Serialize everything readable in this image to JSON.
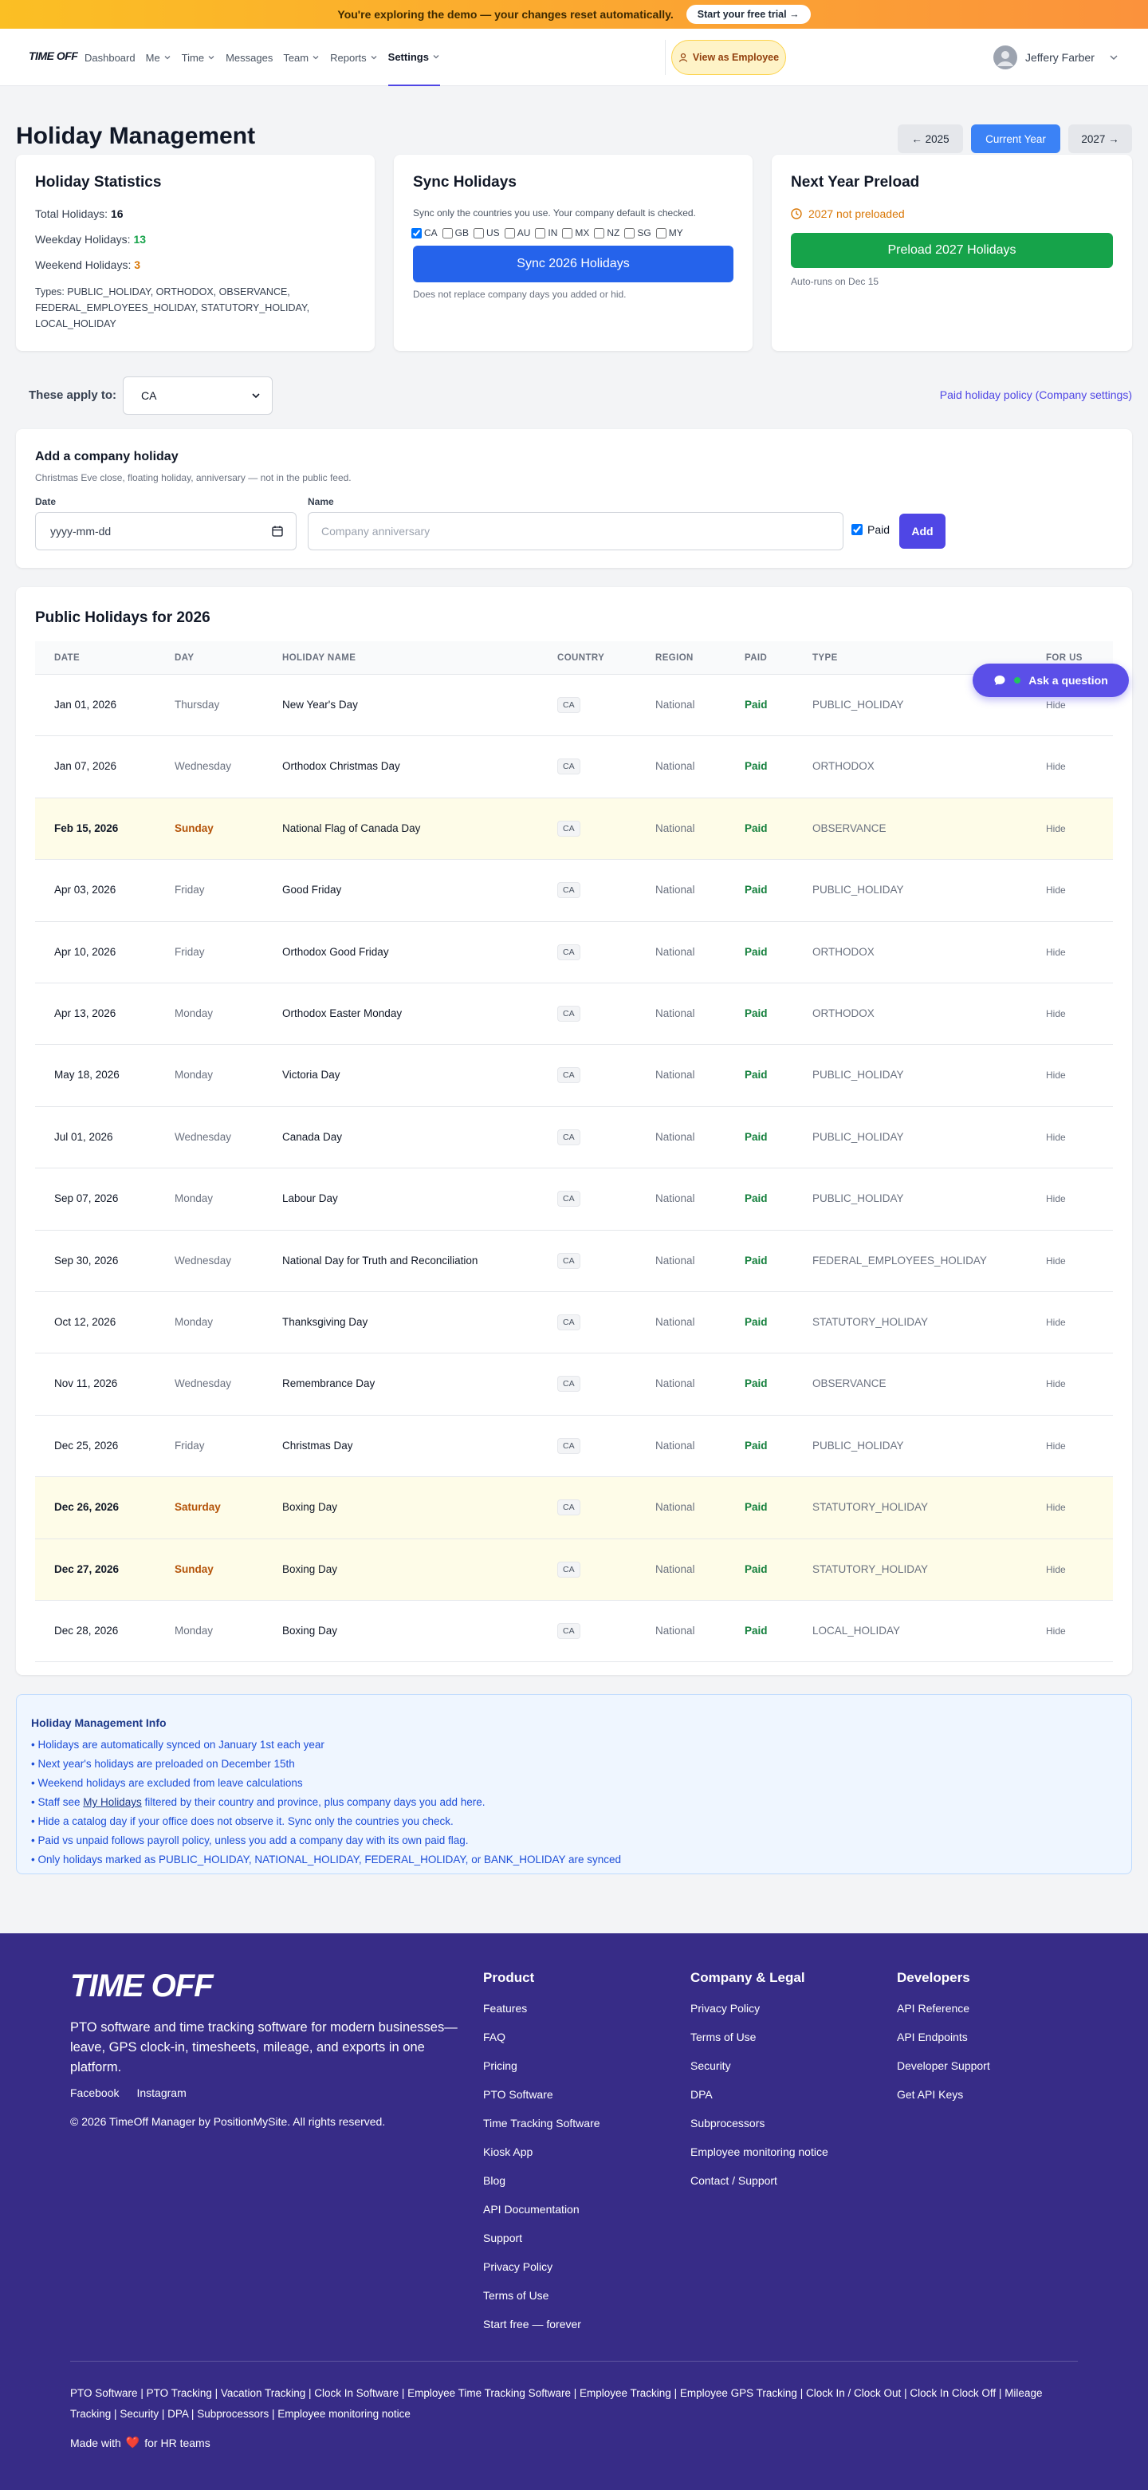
{
  "banner": {
    "text": "You're exploring the demo — your changes reset automatically.",
    "button": "Start your free trial →"
  },
  "nav": {
    "logo": "TIME OFF",
    "items": [
      "Dashboard",
      "Me",
      "Time",
      "Messages",
      "Team",
      "Reports",
      "Settings"
    ],
    "dropdown": [
      false,
      true,
      true,
      false,
      true,
      true,
      true
    ],
    "active": 6,
    "view_as": "View as Employee",
    "user": "Jeffery Farber"
  },
  "header": {
    "title": "Holiday Management",
    "year_buttons": [
      "← 2025",
      "Current Year",
      "2027 →"
    ],
    "active": 1
  },
  "stats": {
    "title": "Holiday Statistics",
    "items": [
      {
        "label": "Total Holidays:",
        "value": 16,
        "color": "#111827"
      },
      {
        "label": "Weekday Holidays:",
        "value": 13,
        "color": "#16a34a"
      },
      {
        "label": "Weekend Holidays:",
        "value": 3,
        "color": "#d97706"
      }
    ],
    "types": "Types: PUBLIC_HOLIDAY, ORTHODOX, OBSERVANCE, FEDERAL_EMPLOYEES_HOLIDAY, STATUTORY_HOLIDAY, LOCAL_HOLIDAY"
  },
  "sync": {
    "title": "Sync Holidays",
    "desc": "Sync only the countries you use. Your company default is checked.",
    "countries": [
      "CA",
      "GB",
      "US",
      "AU",
      "IN",
      "MX",
      "NZ",
      "SG",
      "MY"
    ],
    "checked": [
      true,
      false,
      false,
      false,
      false,
      false,
      false,
      false,
      false
    ],
    "button": "Sync 2026 Holidays",
    "note": "Does not replace company days you added or hid."
  },
  "preload": {
    "title": "Next Year Preload",
    "status": "2027 not preloaded",
    "button": "Preload 2027 Holidays",
    "note": "Auto-runs on Dec 15"
  },
  "filter": {
    "label": "These apply to:",
    "selected": "CA",
    "link": "Paid holiday policy (Company settings)"
  },
  "add_holiday": {
    "title": "Add a company holiday",
    "desc": "Christmas Eve close, floating holiday, anniversary — not in the public feed.",
    "date_label": "Date",
    "date_placeholder": "yyyy-mm-dd",
    "name_label": "Name",
    "name_placeholder": "Company anniversary",
    "paid_label": "Paid",
    "button": "Add"
  },
  "table": {
    "title": "Public Holidays for 2026",
    "columns": [
      "DATE",
      "DAY",
      "HOLIDAY NAME",
      "COUNTRY",
      "REGION",
      "PAID",
      "TYPE",
      "FOR US"
    ],
    "rows": [
      {
        "date": "Jan 01, 2026",
        "day": "Thursday",
        "name": "New Year's Day",
        "country": "CA",
        "region": "National",
        "paid": "Paid",
        "type": "PUBLIC_HOLIDAY",
        "action": "Hide",
        "weekend": false
      },
      {
        "date": "Jan 07, 2026",
        "day": "Wednesday",
        "name": "Orthodox Christmas Day",
        "country": "CA",
        "region": "National",
        "paid": "Paid",
        "type": "ORTHODOX",
        "action": "Hide",
        "weekend": false
      },
      {
        "date": "Feb 15, 2026",
        "day": "Sunday",
        "name": "National Flag of Canada Day",
        "country": "CA",
        "region": "National",
        "paid": "Paid",
        "type": "OBSERVANCE",
        "action": "Hide",
        "weekend": true
      },
      {
        "date": "Apr 03, 2026",
        "day": "Friday",
        "name": "Good Friday",
        "country": "CA",
        "region": "National",
        "paid": "Paid",
        "type": "PUBLIC_HOLIDAY",
        "action": "Hide",
        "weekend": false
      },
      {
        "date": "Apr 10, 2026",
        "day": "Friday",
        "name": "Orthodox Good Friday",
        "country": "CA",
        "region": "National",
        "paid": "Paid",
        "type": "ORTHODOX",
        "action": "Hide",
        "weekend": false
      },
      {
        "date": "Apr 13, 2026",
        "day": "Monday",
        "name": "Orthodox Easter Monday",
        "country": "CA",
        "region": "National",
        "paid": "Paid",
        "type": "ORTHODOX",
        "action": "Hide",
        "weekend": false
      },
      {
        "date": "May 18, 2026",
        "day": "Monday",
        "name": "Victoria Day",
        "country": "CA",
        "region": "National",
        "paid": "Paid",
        "type": "PUBLIC_HOLIDAY",
        "action": "Hide",
        "weekend": false
      },
      {
        "date": "Jul 01, 2026",
        "day": "Wednesday",
        "name": "Canada Day",
        "country": "CA",
        "region": "National",
        "paid": "Paid",
        "type": "PUBLIC_HOLIDAY",
        "action": "Hide",
        "weekend": false
      },
      {
        "date": "Sep 07, 2026",
        "day": "Monday",
        "name": "Labour Day",
        "country": "CA",
        "region": "National",
        "paid": "Paid",
        "type": "PUBLIC_HOLIDAY",
        "action": "Hide",
        "weekend": false
      },
      {
        "date": "Sep 30, 2026",
        "day": "Wednesday",
        "name": "National Day for Truth and Reconciliation",
        "country": "CA",
        "region": "National",
        "paid": "Paid",
        "type": "FEDERAL_EMPLOYEES_HOLIDAY",
        "action": "Hide",
        "weekend": false
      },
      {
        "date": "Oct 12, 2026",
        "day": "Monday",
        "name": "Thanksgiving Day",
        "country": "CA",
        "region": "National",
        "paid": "Paid",
        "type": "STATUTORY_HOLIDAY",
        "action": "Hide",
        "weekend": false
      },
      {
        "date": "Nov 11, 2026",
        "day": "Wednesday",
        "name": "Remembrance Day",
        "country": "CA",
        "region": "National",
        "paid": "Paid",
        "type": "OBSERVANCE",
        "action": "Hide",
        "weekend": false
      },
      {
        "date": "Dec 25, 2026",
        "day": "Friday",
        "name": "Christmas Day",
        "country": "CA",
        "region": "National",
        "paid": "Paid",
        "type": "PUBLIC_HOLIDAY",
        "action": "Hide",
        "weekend": false
      },
      {
        "date": "Dec 26, 2026",
        "day": "Saturday",
        "name": "Boxing Day",
        "country": "CA",
        "region": "National",
        "paid": "Paid",
        "type": "STATUTORY_HOLIDAY",
        "action": "Hide",
        "weekend": true
      },
      {
        "date": "Dec 27, 2026",
        "day": "Sunday",
        "name": "Boxing Day",
        "country": "CA",
        "region": "National",
        "paid": "Paid",
        "type": "STATUTORY_HOLIDAY",
        "action": "Hide",
        "weekend": true
      },
      {
        "date": "Dec 28, 2026",
        "day": "Monday",
        "name": "Boxing Day",
        "country": "CA",
        "region": "National",
        "paid": "Paid",
        "type": "LOCAL_HOLIDAY",
        "action": "Hide",
        "weekend": false
      }
    ]
  },
  "ask_button": "Ask a question",
  "info": {
    "title": "Holiday Management Info",
    "items": [
      "• Holidays are automatically synced on January 1st each year",
      "• Next year's holidays are preloaded on December 15th",
      "• Weekend holidays are excluded from leave calculations",
      {
        "before": "• Staff see ",
        "link": "My Holidays",
        "after": " filtered by their country and province, plus company days you add here."
      },
      "• Hide a catalog day if your office does not observe it. Sync only the countries you check.",
      "• Paid vs unpaid follows payroll policy, unless you add a company day with its own paid flag.",
      "• Only holidays marked as PUBLIC_HOLIDAY, NATIONAL_HOLIDAY, FEDERAL_HOLIDAY, or BANK_HOLIDAY are synced"
    ]
  },
  "footer": {
    "logo": "TIME OFF",
    "tagline": "PTO software and time tracking software for modern businesses—leave, GPS clock-in, timesheets, mileage, and exports in one platform.",
    "social": [
      "Facebook",
      "Instagram"
    ],
    "copyright": "© 2026 TimeOff Manager by PositionMySite. All rights reserved.",
    "columns": [
      {
        "title": "Product",
        "links": [
          "Features",
          "FAQ",
          "Pricing",
          "PTO Software",
          "Time Tracking Software",
          "Kiosk App",
          "Blog",
          "API Documentation",
          "Support",
          "Privacy Policy",
          "Terms of Use",
          "Start free — forever"
        ]
      },
      {
        "title": "Company & Legal",
        "links": [
          "Privacy Policy",
          "Terms of Use",
          "Security",
          "DPA",
          "Subprocessors",
          "Employee monitoring notice",
          "Contact / Support"
        ]
      },
      {
        "title": "Developers",
        "links": [
          "API Reference",
          "API Endpoints",
          "Developer Support",
          "Get API Keys"
        ]
      }
    ],
    "seo_links": [
      "PTO Software",
      "PTO Tracking",
      "Vacation Tracking",
      "Clock In Software",
      "Employee Time Tracking Software",
      "Employee Tracking",
      "Employee GPS Tracking",
      "Clock In / Clock Out",
      "Clock In Clock Off",
      "Mileage Tracking",
      "Security",
      "DPA",
      "Subprocessors",
      "Employee monitoring notice"
    ],
    "separator": "|",
    "made_with": "Made with",
    "heart": "❤️",
    "made_for": "for HR teams"
  }
}
